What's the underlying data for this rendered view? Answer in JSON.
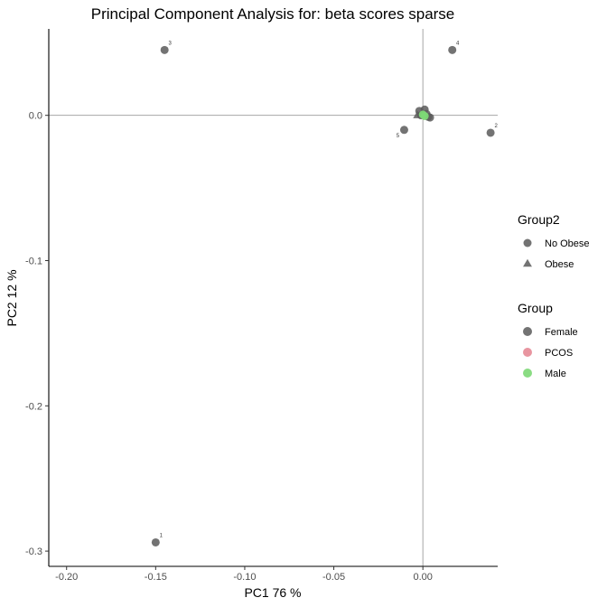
{
  "chart_data": {
    "type": "scatter",
    "title": "Principal Component Analysis for:  beta scores sparse",
    "xlabel": "PC1 76 %",
    "ylabel": "PC2 12 %",
    "xlim": [
      -0.21,
      0.042
    ],
    "ylim": [
      -0.3105,
      0.0595
    ],
    "x_ticks": [
      -0.2,
      -0.15,
      -0.1,
      -0.05,
      0.0
    ],
    "x_tick_labels": [
      "-0.20",
      "-0.15",
      "-0.10",
      "-0.05",
      "0.00"
    ],
    "y_ticks": [
      0.0,
      -0.1,
      -0.2,
      -0.3
    ],
    "y_tick_labels": [
      "0.0",
      "-0.1",
      "-0.2",
      "-0.3"
    ],
    "reference_lines": {
      "x": 0.0,
      "y": 0.0
    },
    "grid": false,
    "legend_position": "right",
    "legends": [
      {
        "title": "Group2",
        "entries": [
          {
            "label": "No Obese",
            "shape": "circle"
          },
          {
            "label": "Obese",
            "shape": "triangle"
          }
        ]
      },
      {
        "title": "Group",
        "entries": [
          {
            "label": "Female",
            "color": "#5a5a5a"
          },
          {
            "label": "PCOS",
            "color": "#e68a96"
          },
          {
            "label": "Male",
            "color": "#7dd876"
          }
        ]
      }
    ],
    "points": [
      {
        "x": -0.145,
        "y": 0.045,
        "group": "Female",
        "shape": "circle",
        "label": "3"
      },
      {
        "x": 0.0165,
        "y": 0.045,
        "group": "Female",
        "shape": "circle",
        "label": "4"
      },
      {
        "x": -0.15,
        "y": -0.294,
        "group": "Female",
        "shape": "circle",
        "label": "1"
      },
      {
        "x": 0.038,
        "y": -0.012,
        "group": "Female",
        "shape": "circle",
        "label": "2"
      },
      {
        "x": -0.0105,
        "y": -0.01,
        "group": "Female",
        "shape": "circle",
        "label": "5"
      },
      {
        "x": -0.002,
        "y": 0.003,
        "group": "Female",
        "shape": "circle",
        "label": ""
      },
      {
        "x": 0.001,
        "y": 0.004,
        "group": "Female",
        "shape": "circle",
        "label": ""
      },
      {
        "x": 0.003,
        "y": -0.001,
        "group": "Female",
        "shape": "circle",
        "label": ""
      },
      {
        "x": -0.001,
        "y": 0.0,
        "group": "Female",
        "shape": "circle",
        "label": ""
      },
      {
        "x": 0.002,
        "y": 0.001,
        "group": "Female",
        "shape": "circle",
        "label": ""
      },
      {
        "x": 0.004,
        "y": -0.0015,
        "group": "Female",
        "shape": "circle",
        "label": ""
      },
      {
        "x": -0.003,
        "y": 0.0,
        "group": "Female",
        "shape": "triangle",
        "label": ""
      },
      {
        "x": 0.0,
        "y": 0.0005,
        "group": "Male",
        "shape": "circle",
        "label": ""
      },
      {
        "x": 0.001,
        "y": -0.0005,
        "group": "Male",
        "shape": "circle",
        "label": ""
      }
    ]
  }
}
